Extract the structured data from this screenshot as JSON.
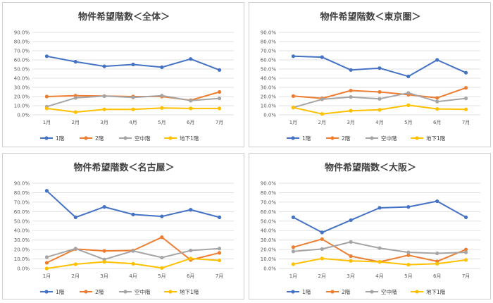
{
  "colors": {
    "1階": "#4472C4",
    "2階": "#ED7D31",
    "空中階": "#A5A5A5",
    "地下1階": "#FFC000",
    "grid": "#d9d9d9",
    "border": "#cfcfcf"
  },
  "chart_data": [
    {
      "type": "line",
      "title": "物件希望階数＜全体＞",
      "categories": [
        "1月",
        "2月",
        "3月",
        "4月",
        "5月",
        "6月",
        "7月"
      ],
      "y_tick_labels": [
        "0.0%",
        "10.0%",
        "20.0%",
        "30.0%",
        "40.0%",
        "50.0%",
        "60.0%",
        "70.0%",
        "80.0%",
        "90.0%"
      ],
      "ylim": [
        0,
        90
      ],
      "grid": true,
      "legend": "bottom",
      "series": [
        {
          "name": "1階",
          "values": [
            64,
            58,
            53,
            55,
            52,
            61,
            49
          ]
        },
        {
          "name": "2階",
          "values": [
            20,
            21,
            20.5,
            20,
            20,
            16,
            25
          ]
        },
        {
          "name": "空中階",
          "values": [
            9,
            18.5,
            20.5,
            19,
            21,
            15.5,
            18
          ]
        },
        {
          "name": "地下1階",
          "values": [
            7,
            3,
            6,
            6,
            7.5,
            7,
            7
          ]
        }
      ]
    },
    {
      "type": "line",
      "title": "物件希望階数＜東京圏＞",
      "categories": [
        "1月",
        "2月",
        "3月",
        "4月",
        "5月",
        "6月",
        "7月"
      ],
      "y_tick_labels": [
        "0.0%",
        "10.0%",
        "20.0%",
        "30.0%",
        "40.0%",
        "50.0%",
        "60.0%",
        "70.0%",
        "80.0%",
        "90.0%"
      ],
      "ylim": [
        0,
        90
      ],
      "grid": true,
      "legend": "bottom",
      "series": [
        {
          "name": "1階",
          "values": [
            64,
            63,
            49,
            51,
            42,
            60,
            46
          ]
        },
        {
          "name": "2階",
          "values": [
            20.5,
            18,
            26.5,
            25,
            22,
            18.5,
            29.5
          ]
        },
        {
          "name": "空中階",
          "values": [
            8,
            17,
            19.5,
            17.5,
            24,
            14.5,
            18
          ]
        },
        {
          "name": "地下1階",
          "values": [
            8,
            1,
            4.5,
            5.5,
            10.5,
            6.5,
            6
          ]
        }
      ]
    },
    {
      "type": "line",
      "title": "物件希望階数＜名古屋＞",
      "categories": [
        "1月",
        "2月",
        "3月",
        "4月",
        "5月",
        "6月",
        "7月"
      ],
      "y_tick_labels": [
        "0.0%",
        "10.0%",
        "20.0%",
        "30.0%",
        "40.0%",
        "50.0%",
        "60.0%",
        "70.0%",
        "80.0%",
        "90.0%"
      ],
      "ylim": [
        0,
        90
      ],
      "grid": true,
      "legend": "bottom",
      "series": [
        {
          "name": "1階",
          "values": [
            82,
            54,
            65,
            57,
            55,
            62,
            54
          ]
        },
        {
          "name": "2階",
          "values": [
            6,
            20.5,
            18.5,
            19,
            33,
            9,
            16.5
          ]
        },
        {
          "name": "空中階",
          "values": [
            12,
            21,
            9.5,
            18.5,
            11.5,
            19,
            21
          ]
        },
        {
          "name": "地下1階",
          "values": [
            0,
            4.5,
            7,
            5,
            0.5,
            10.5,
            8.5
          ]
        }
      ]
    },
    {
      "type": "line",
      "title": "物件希望階数＜大阪＞",
      "categories": [
        "1月",
        "2月",
        "3月",
        "4月",
        "5月",
        "6月",
        "7月"
      ],
      "y_tick_labels": [
        "0.0%",
        "10.0%",
        "20.0%",
        "30.0%",
        "40.0%",
        "50.0%",
        "60.0%",
        "70.0%",
        "80.0%",
        "90.0%"
      ],
      "ylim": [
        0,
        90
      ],
      "grid": true,
      "legend": "bottom",
      "series": [
        {
          "name": "1階",
          "values": [
            54,
            38,
            51,
            64,
            65,
            71,
            54
          ]
        },
        {
          "name": "2階",
          "values": [
            22.5,
            31,
            13,
            7,
            14,
            7.5,
            20
          ]
        },
        {
          "name": "空中階",
          "values": [
            18,
            20.5,
            28,
            21.5,
            17,
            16,
            17
          ]
        },
        {
          "name": "地下1階",
          "values": [
            4.5,
            10.5,
            8,
            7,
            4,
            5,
            9
          ]
        }
      ]
    }
  ]
}
